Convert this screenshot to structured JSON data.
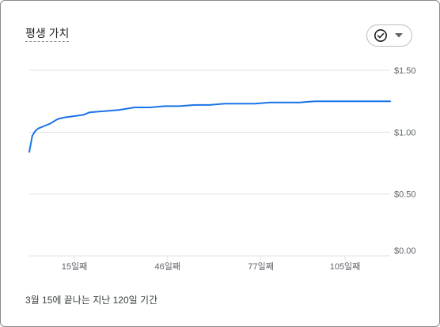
{
  "card": {
    "title": "평생 가치",
    "footer": "3월 15에 끝나는 지난 120일 기간"
  },
  "metric_button": {
    "icon": "check-circle-icon",
    "dropdown_icon": "caret-down-icon"
  },
  "colors": {
    "line": "#1a73e8",
    "grid": "#e0e0e0",
    "text_muted": "#5f6368"
  },
  "chart_data": {
    "type": "line",
    "title": "평생 가치",
    "xlabel": "",
    "ylabel": "",
    "xlim": [
      0,
      120
    ],
    "ylim": [
      0,
      1.5
    ],
    "y_ticks": [
      {
        "value": 0,
        "label": "$0.00"
      },
      {
        "value": 0.5,
        "label": "$0.50"
      },
      {
        "value": 1.0,
        "label": "$1.00"
      },
      {
        "value": 1.5,
        "label": "$1.50"
      }
    ],
    "x_ticks": [
      {
        "value": 15,
        "label": "15일째"
      },
      {
        "value": 46,
        "label": "46일째"
      },
      {
        "value": 77,
        "label": "77일째"
      },
      {
        "value": 105,
        "label": "105일째"
      }
    ],
    "grid": true,
    "series": [
      {
        "x": [
          0,
          1,
          2,
          3,
          4,
          5,
          7,
          9,
          10,
          12,
          15,
          18,
          20,
          25,
          30,
          35,
          40,
          45,
          50,
          55,
          60,
          65,
          70,
          75,
          80,
          85,
          90,
          95,
          100,
          105,
          110,
          115,
          120
        ],
        "values": [
          0.84,
          0.97,
          1.01,
          1.03,
          1.04,
          1.05,
          1.07,
          1.1,
          1.11,
          1.12,
          1.13,
          1.14,
          1.16,
          1.17,
          1.18,
          1.2,
          1.2,
          1.21,
          1.21,
          1.22,
          1.22,
          1.23,
          1.23,
          1.23,
          1.24,
          1.24,
          1.24,
          1.25,
          1.25,
          1.25,
          1.25,
          1.25,
          1.25
        ]
      }
    ]
  }
}
